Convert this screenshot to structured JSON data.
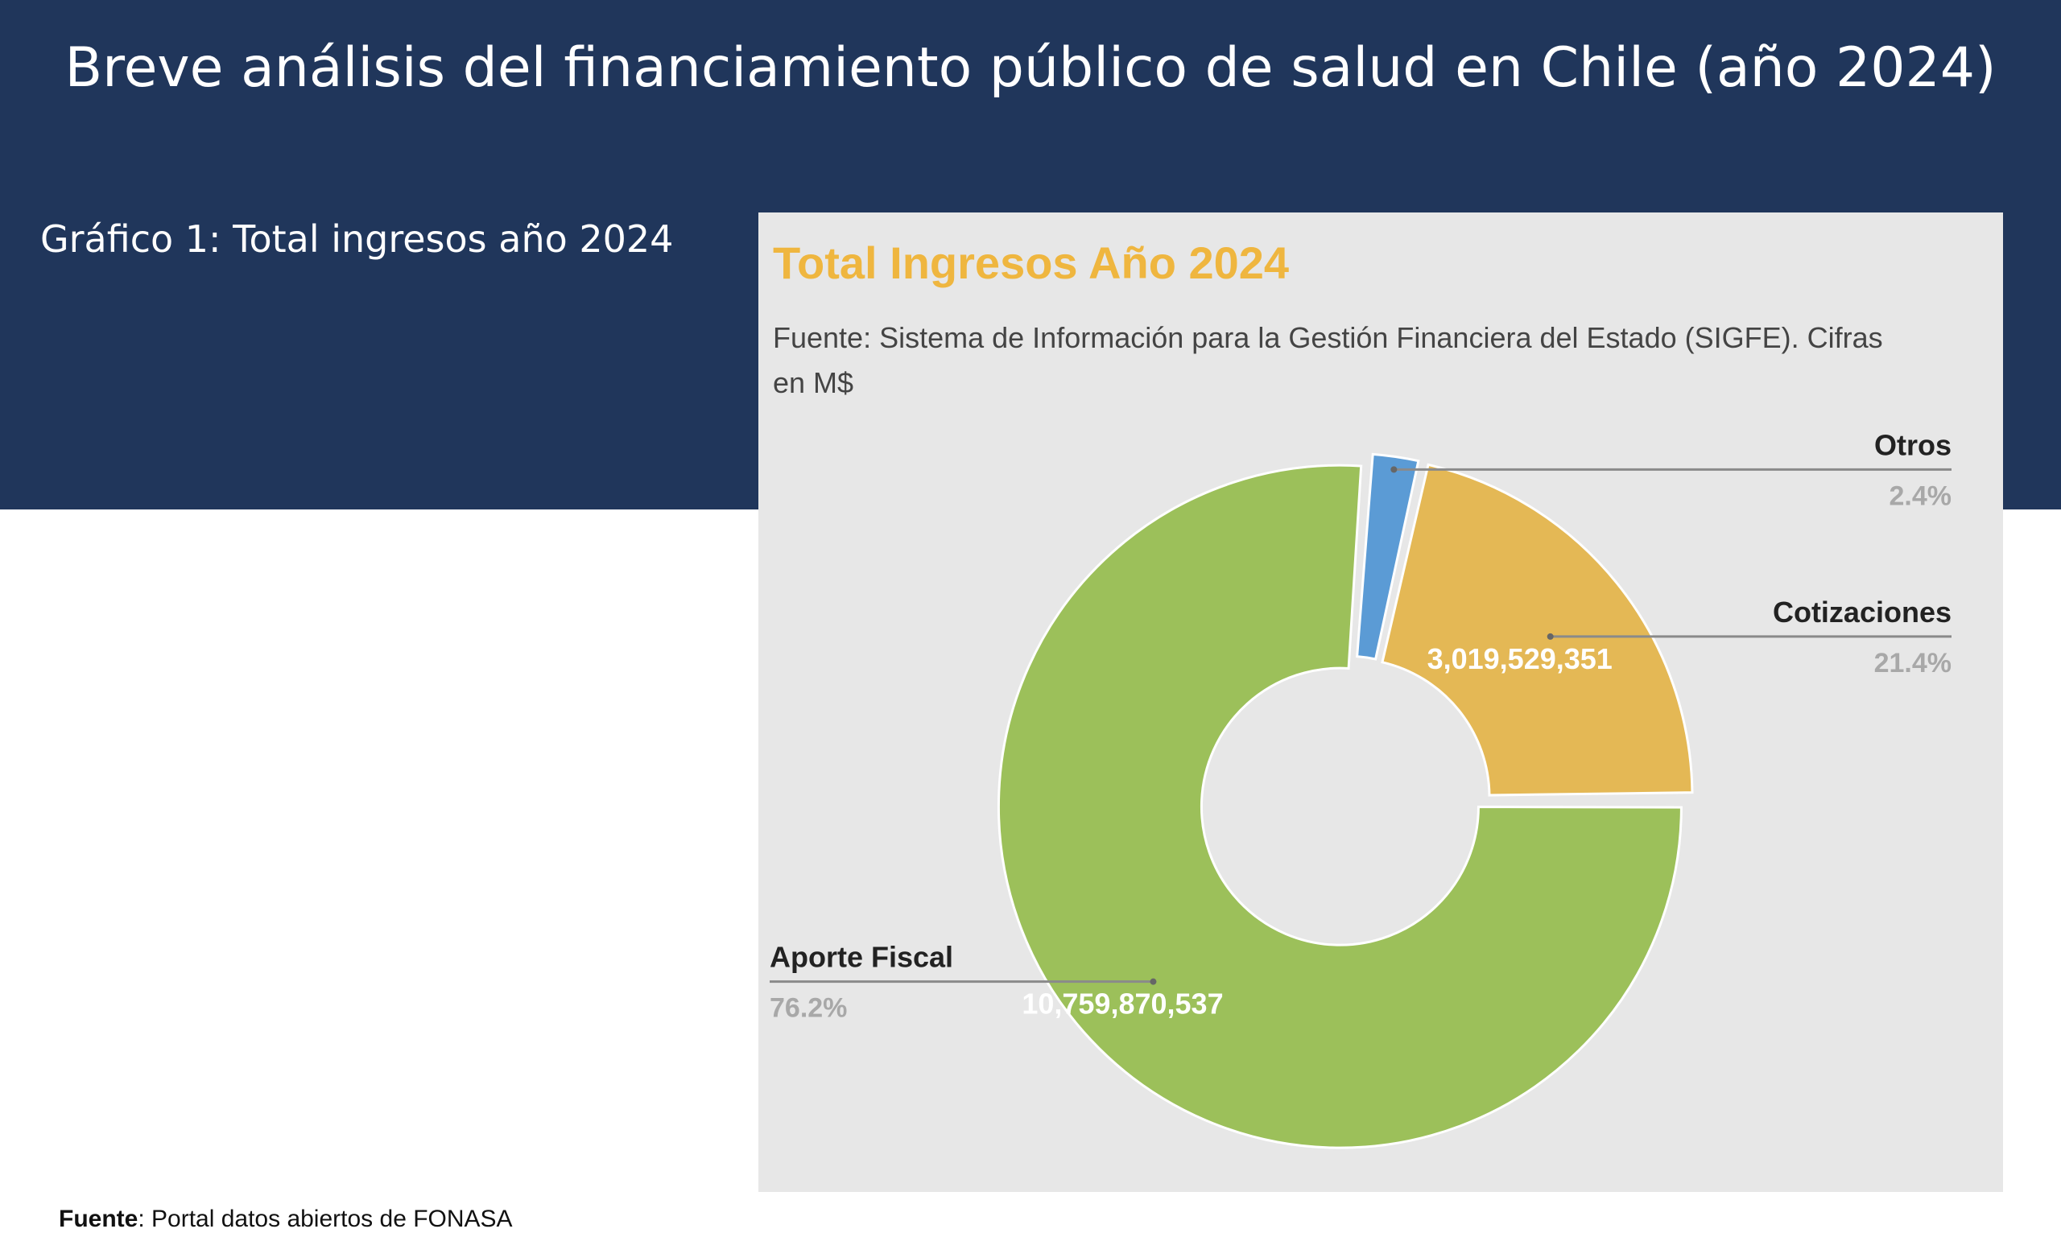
{
  "slide": {
    "title": "Breve análisis del financiamiento público de salud en Chile (año 2024)",
    "chart_label": "Gráfico 1: Total ingresos año 2024",
    "footer_bold": "Fuente",
    "footer_rest": ": Portal datos abiertos de FONASA"
  },
  "colors": {
    "header_band": "#20365b",
    "card_bg": "#e7e7e7",
    "title_accent": "#efb63f",
    "aporte_fiscal": "#9cc05a",
    "cotizaciones": "#e4b855",
    "otros": "#5b9bd5"
  },
  "chart_data": {
    "type": "pie",
    "title": "Total Ingresos Año 2024",
    "subtitle": "Fuente: Sistema de Información para la Gestión Financiera del Estado (SIGFE). Cifras en M$",
    "donut": true,
    "slices": [
      {
        "label": "Otros",
        "percent": 2.4,
        "percent_label": "2.4%",
        "value_label": "",
        "color": "#5b9bd5"
      },
      {
        "label": "Cotizaciones",
        "percent": 21.4,
        "percent_label": "21.4%",
        "value": 3019529351,
        "value_label": "3,019,529,351",
        "color": "#e4b855"
      },
      {
        "label": "Aporte Fiscal",
        "percent": 76.2,
        "percent_label": "76.2%",
        "value": 10759870537,
        "value_label": "10,759,870,537",
        "color": "#9cc05a"
      }
    ]
  }
}
